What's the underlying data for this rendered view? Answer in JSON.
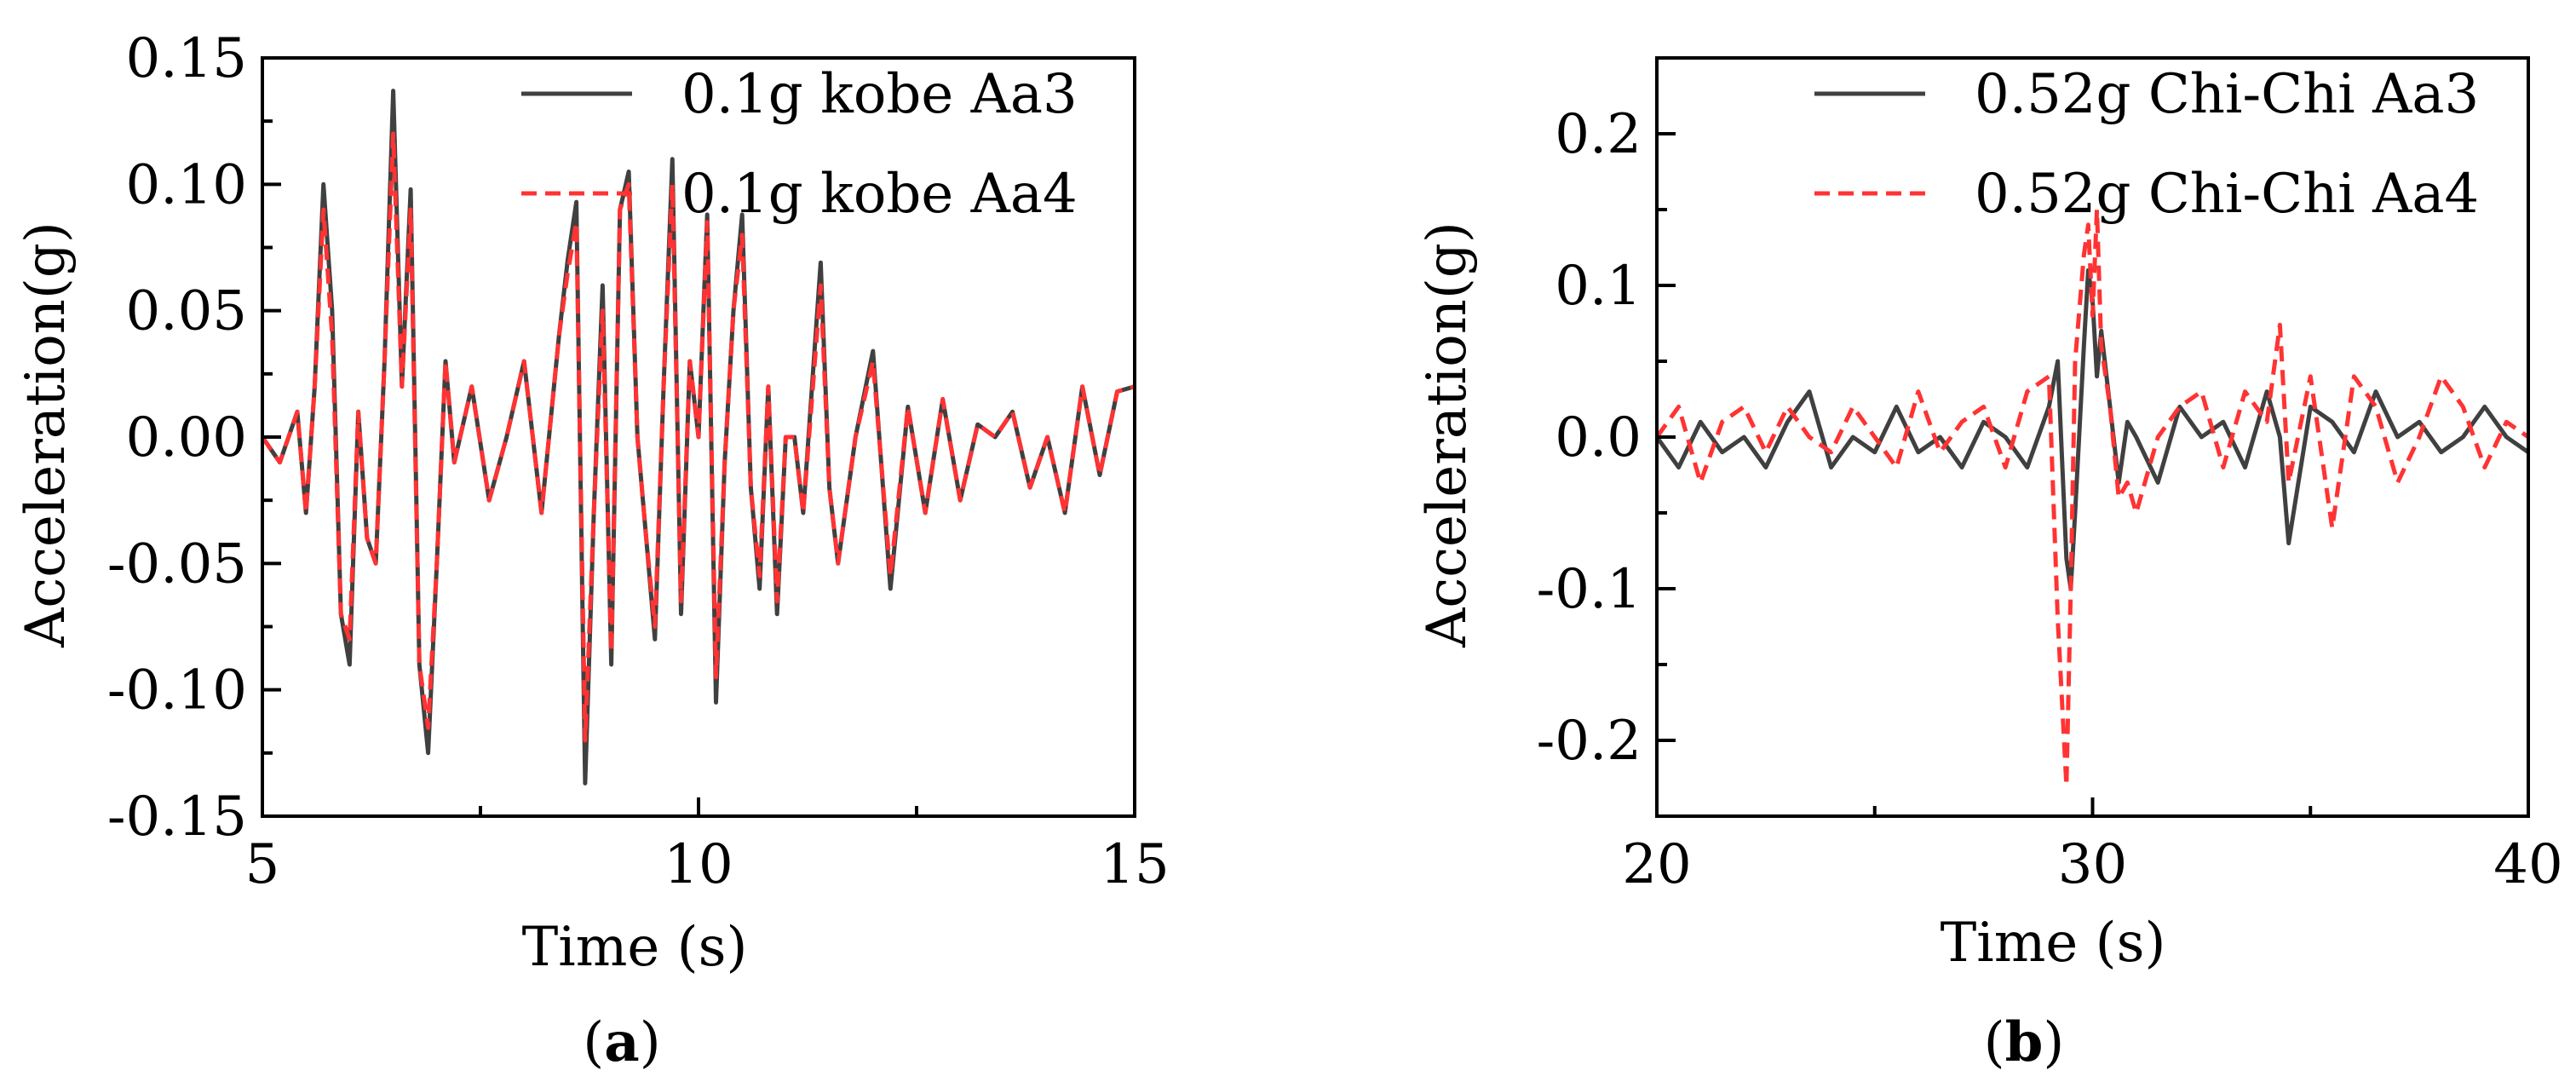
{
  "chart_data": [
    {
      "type": "line",
      "panel_label": "a",
      "title": "",
      "xlabel": "Time (s)",
      "ylabel": "Acceleration(g)",
      "xlim": [
        5,
        15
      ],
      "ylim": [
        -0.15,
        0.15
      ],
      "xticks": [
        "5",
        "10",
        "15"
      ],
      "xtick_values": [
        5,
        10,
        15
      ],
      "yticks": [
        "-0.15",
        "-0.10",
        "-0.05",
        "0.00",
        "0.05",
        "0.10",
        "0.15"
      ],
      "ytick_values": [
        -0.15,
        -0.1,
        -0.05,
        0.0,
        0.05,
        0.1,
        0.15
      ],
      "grid": false,
      "legend_position": "top-right",
      "series": [
        {
          "name": "0.1g kobe Aa3",
          "color": "#404040",
          "style": "solid",
          "x": [
            5.0,
            5.2,
            5.4,
            5.5,
            5.6,
            5.7,
            5.8,
            5.9,
            6.0,
            6.1,
            6.2,
            6.3,
            6.4,
            6.5,
            6.6,
            6.7,
            6.8,
            6.9,
            7.0,
            7.1,
            7.2,
            7.4,
            7.6,
            7.8,
            8.0,
            8.2,
            8.4,
            8.5,
            8.6,
            8.7,
            8.8,
            8.9,
            9.0,
            9.1,
            9.2,
            9.3,
            9.4,
            9.5,
            9.6,
            9.7,
            9.8,
            9.9,
            10.0,
            10.1,
            10.2,
            10.3,
            10.4,
            10.5,
            10.6,
            10.7,
            10.8,
            10.9,
            11.0,
            11.1,
            11.2,
            11.4,
            11.5,
            11.6,
            11.8,
            12.0,
            12.2,
            12.4,
            12.6,
            12.8,
            13.0,
            13.2,
            13.4,
            13.6,
            13.8,
            14.0,
            14.2,
            14.4,
            14.6,
            14.8,
            15.0
          ],
          "values": [
            0.0,
            -0.01,
            0.01,
            -0.03,
            0.02,
            0.1,
            0.05,
            -0.07,
            -0.09,
            0.01,
            -0.04,
            -0.05,
            0.03,
            0.137,
            0.02,
            0.098,
            -0.09,
            -0.125,
            -0.05,
            0.03,
            -0.01,
            0.02,
            -0.025,
            0.0,
            0.03,
            -0.03,
            0.04,
            0.07,
            0.093,
            -0.137,
            -0.03,
            0.06,
            -0.09,
            0.09,
            0.105,
            0.0,
            -0.04,
            -0.08,
            0.02,
            0.11,
            -0.07,
            0.03,
            0.0,
            0.088,
            -0.105,
            -0.01,
            0.05,
            0.088,
            -0.02,
            -0.06,
            0.02,
            -0.07,
            0.0,
            0.0,
            -0.03,
            0.069,
            -0.02,
            -0.05,
            0.0,
            0.034,
            -0.06,
            0.012,
            -0.03,
            0.015,
            -0.025,
            0.005,
            0.0,
            0.01,
            -0.02,
            0.0,
            -0.03,
            0.02,
            -0.015,
            0.018,
            0.02
          ]
        },
        {
          "name": "0.1g kobe Aa4",
          "color": "#ff3333",
          "style": "dashed",
          "x": [
            5.0,
            5.2,
            5.4,
            5.5,
            5.6,
            5.7,
            5.8,
            5.9,
            6.0,
            6.1,
            6.2,
            6.3,
            6.4,
            6.5,
            6.6,
            6.7,
            6.8,
            6.9,
            7.0,
            7.1,
            7.2,
            7.4,
            7.6,
            7.8,
            8.0,
            8.2,
            8.4,
            8.5,
            8.6,
            8.7,
            8.8,
            8.9,
            9.0,
            9.1,
            9.2,
            9.3,
            9.4,
            9.5,
            9.6,
            9.7,
            9.8,
            9.9,
            10.0,
            10.1,
            10.2,
            10.3,
            10.4,
            10.5,
            10.6,
            10.7,
            10.8,
            10.9,
            11.0,
            11.1,
            11.2,
            11.4,
            11.5,
            11.6,
            11.8,
            12.0,
            12.2,
            12.4,
            12.6,
            12.8,
            13.0,
            13.2,
            13.4,
            13.6,
            13.8,
            14.0,
            14.2,
            14.4,
            14.6,
            14.8,
            15.0
          ],
          "values": [
            0.0,
            -0.01,
            0.01,
            -0.03,
            0.02,
            0.09,
            0.04,
            -0.07,
            -0.08,
            0.01,
            -0.04,
            -0.05,
            0.03,
            0.12,
            0.02,
            0.09,
            -0.09,
            -0.115,
            -0.05,
            0.03,
            -0.01,
            0.02,
            -0.025,
            0.0,
            0.03,
            -0.03,
            0.04,
            0.065,
            0.085,
            -0.12,
            -0.03,
            0.05,
            -0.085,
            0.09,
            0.1,
            0.0,
            -0.04,
            -0.075,
            0.02,
            0.1,
            -0.065,
            0.03,
            0.0,
            0.085,
            -0.095,
            -0.01,
            0.05,
            0.08,
            -0.02,
            -0.055,
            0.02,
            -0.065,
            0.0,
            0.0,
            -0.03,
            0.06,
            -0.02,
            -0.05,
            0.0,
            0.03,
            -0.055,
            0.012,
            -0.03,
            0.015,
            -0.025,
            0.005,
            0.0,
            0.01,
            -0.02,
            0.0,
            -0.03,
            0.02,
            -0.015,
            0.018,
            0.02
          ]
        }
      ]
    },
    {
      "type": "line",
      "panel_label": "b",
      "title": "",
      "xlabel": "Time (s)",
      "ylabel": "Acceleration(g)",
      "xlim": [
        20,
        40
      ],
      "ylim": [
        -0.25,
        0.25
      ],
      "xticks": [
        "20",
        "30",
        "40"
      ],
      "xtick_values": [
        20,
        30,
        40
      ],
      "yticks": [
        "-0.2",
        "-0.1",
        "0.0",
        "0.1",
        "0.2"
      ],
      "ytick_values": [
        -0.2,
        -0.1,
        0.0,
        0.1,
        0.2
      ],
      "grid": false,
      "legend_position": "top-right",
      "series": [
        {
          "name": "0.52g Chi-Chi Aa3",
          "color": "#404040",
          "style": "solid",
          "x": [
            20.0,
            20.5,
            21.0,
            21.5,
            22.0,
            22.5,
            23.0,
            23.5,
            24.0,
            24.5,
            25.0,
            25.5,
            26.0,
            26.5,
            27.0,
            27.5,
            28.0,
            28.5,
            29.0,
            29.2,
            29.4,
            29.5,
            29.6,
            29.8,
            29.9,
            30.0,
            30.1,
            30.2,
            30.4,
            30.6,
            30.8,
            31.0,
            31.5,
            32.0,
            32.5,
            33.0,
            33.5,
            34.0,
            34.3,
            34.5,
            35.0,
            35.5,
            36.0,
            36.5,
            37.0,
            37.5,
            38.0,
            38.5,
            39.0,
            39.5,
            40.0
          ],
          "values": [
            0.0,
            -0.02,
            0.01,
            -0.01,
            0.0,
            -0.02,
            0.01,
            0.03,
            -0.02,
            0.0,
            -0.01,
            0.02,
            -0.01,
            0.0,
            -0.02,
            0.01,
            0.0,
            -0.02,
            0.02,
            0.05,
            -0.08,
            -0.1,
            -0.05,
            0.06,
            0.11,
            0.09,
            0.04,
            0.07,
            0.02,
            -0.03,
            0.01,
            0.0,
            -0.03,
            0.02,
            0.0,
            0.01,
            -0.02,
            0.03,
            0.0,
            -0.07,
            0.02,
            0.01,
            -0.01,
            0.03,
            0.0,
            0.01,
            -0.01,
            0.0,
            0.02,
            0.0,
            -0.01
          ]
        },
        {
          "name": "0.52g Chi-Chi Aa4",
          "color": "#ff3333",
          "style": "dashed",
          "x": [
            20.0,
            20.5,
            21.0,
            21.5,
            22.0,
            22.5,
            23.0,
            23.5,
            24.0,
            24.5,
            25.0,
            25.5,
            26.0,
            26.5,
            27.0,
            27.5,
            28.0,
            28.5,
            29.0,
            29.2,
            29.4,
            29.5,
            29.6,
            29.8,
            29.9,
            30.0,
            30.1,
            30.2,
            30.4,
            30.6,
            30.8,
            31.0,
            31.5,
            32.0,
            32.5,
            33.0,
            33.5,
            34.0,
            34.3,
            34.5,
            35.0,
            35.5,
            36.0,
            36.5,
            37.0,
            37.5,
            38.0,
            38.5,
            39.0,
            39.5,
            40.0
          ],
          "values": [
            0.0,
            0.02,
            -0.03,
            0.01,
            0.02,
            -0.01,
            0.02,
            0.0,
            -0.01,
            0.02,
            0.0,
            -0.02,
            0.03,
            -0.01,
            0.01,
            0.02,
            -0.02,
            0.03,
            0.04,
            -0.12,
            -0.23,
            -0.1,
            0.05,
            0.12,
            0.14,
            0.08,
            0.15,
            0.06,
            0.02,
            -0.04,
            -0.03,
            -0.05,
            0.0,
            0.02,
            0.03,
            -0.02,
            0.03,
            0.01,
            0.074,
            -0.03,
            0.04,
            -0.06,
            0.04,
            0.02,
            -0.03,
            0.0,
            0.04,
            0.02,
            -0.02,
            0.01,
            0.0
          ]
        }
      ]
    }
  ]
}
